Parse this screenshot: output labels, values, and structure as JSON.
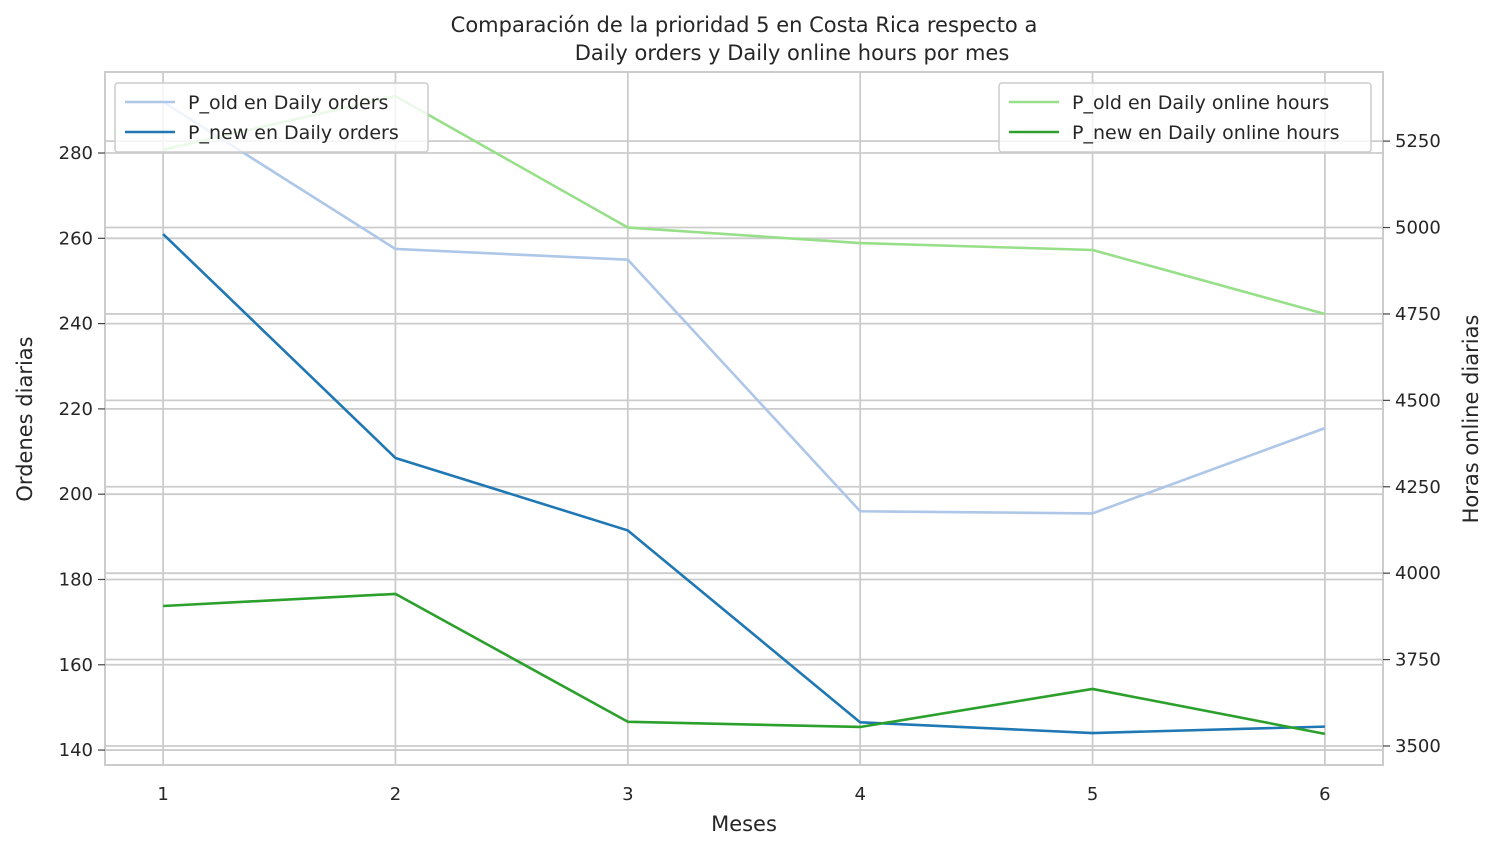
{
  "chart_data": {
    "type": "line",
    "title_line1": "Comparación de la prioridad 5 en Costa Rica respecto a",
    "title_line2": "Daily orders y Daily online hours por mes",
    "xlabel": "Meses",
    "ylabel_left": "Ordenes diarias",
    "ylabel_right": "Horas online diarias",
    "x": [
      1,
      2,
      3,
      4,
      5,
      6
    ],
    "x_ticks": [
      "1",
      "2",
      "3",
      "4",
      "5",
      "6"
    ],
    "xlim": [
      0.75,
      6.25
    ],
    "y_left_lim": [
      136.5,
      299
    ],
    "y_left_ticks": [
      "140",
      "160",
      "180",
      "200",
      "220",
      "240",
      "260",
      "280"
    ],
    "y_right_lim": [
      3445,
      5450
    ],
    "y_right_ticks": [
      "3500",
      "3750",
      "4000",
      "4250",
      "4500",
      "4750",
      "5000",
      "5250"
    ],
    "grid": true,
    "legend_left_position": "upper-left",
    "legend_right_position": "upper-right",
    "series": [
      {
        "name": "P_old en Daily orders",
        "axis": "left",
        "color": "#aec7e8",
        "values": [
          292,
          257.5,
          255,
          196,
          195.5,
          215.5
        ]
      },
      {
        "name": "P_new en Daily orders",
        "axis": "left",
        "color": "#1f77b4",
        "values": [
          261,
          208.5,
          191.5,
          146.5,
          144,
          145.5
        ]
      },
      {
        "name": "P_old en Daily online hours",
        "axis": "right",
        "color": "#98df8a",
        "values": [
          5225,
          5380,
          5000,
          4955,
          4935,
          4750
        ]
      },
      {
        "name": "P_new en Daily online hours",
        "axis": "right",
        "color": "#2ca02c",
        "values": [
          3905,
          3940,
          3570,
          3555,
          3665,
          3535
        ]
      }
    ]
  }
}
